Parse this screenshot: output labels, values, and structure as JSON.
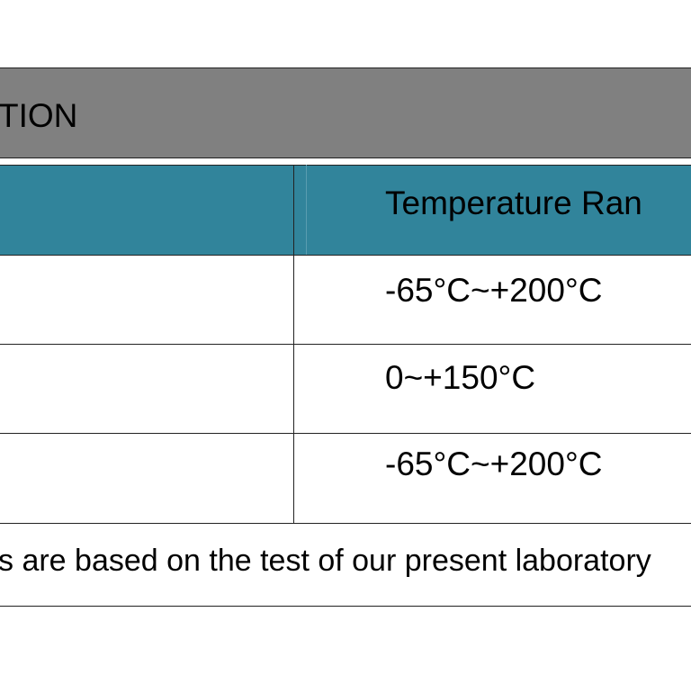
{
  "header": {
    "title": "TION"
  },
  "table": {
    "header": [
      "Temperature Ran"
    ],
    "rows": [
      [
        "-65°C~+200°C"
      ],
      [
        "0~+150°C"
      ],
      [
        "-65°C~+200°C"
      ]
    ]
  },
  "footer": {
    "note": "s are based on the test of our present laboratory"
  }
}
